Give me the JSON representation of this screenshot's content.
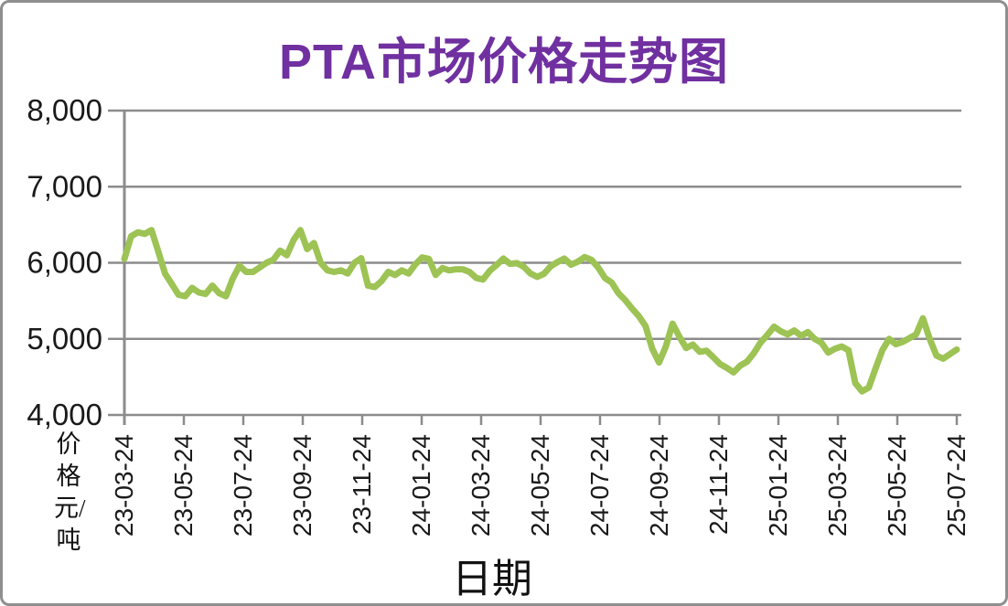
{
  "chart_data": {
    "type": "line",
    "title": "PTA市场价格走势图",
    "title_color": "#7030A0",
    "xlabel": "日期",
    "ylabel": "价格元/吨",
    "ylim": [
      4000,
      8000
    ],
    "y_tick_labels": [
      "8,000",
      "7,000",
      "6,000",
      "5,000",
      "4,000"
    ],
    "x_tick_labels": [
      "23-03-24",
      "23-05-24",
      "23-07-24",
      "23-09-24",
      "23-11-24",
      "24-01-24",
      "24-03-24",
      "24-05-24",
      "24-07-24",
      "24-09-24",
      "24-11-24",
      "25-01-24",
      "25-03-24",
      "25-05-24",
      "25-07-24"
    ],
    "grid": true,
    "legend": false,
    "line_color": "#9DC355",
    "axis_color": "#8C8C8C",
    "tick_label_color": "#1a1a1a",
    "series": [
      {
        "name": "PTA",
        "values": [
          6050,
          6350,
          6400,
          6380,
          6430,
          6150,
          5860,
          5720,
          5580,
          5560,
          5670,
          5610,
          5590,
          5700,
          5600,
          5560,
          5790,
          5960,
          5880,
          5880,
          5940,
          6000,
          6040,
          6160,
          6100,
          6300,
          6430,
          6180,
          6260,
          6000,
          5900,
          5880,
          5900,
          5860,
          6000,
          6060,
          5700,
          5680,
          5760,
          5880,
          5840,
          5900,
          5860,
          5980,
          6070,
          6050,
          5840,
          5930,
          5900,
          5915,
          5915,
          5880,
          5800,
          5780,
          5895,
          5970,
          6055,
          5985,
          5995,
          5950,
          5860,
          5815,
          5855,
          5955,
          6010,
          6055,
          5975,
          6015,
          6075,
          6040,
          5940,
          5800,
          5740,
          5600,
          5510,
          5400,
          5300,
          5170,
          4870,
          4690,
          4900,
          5200,
          5030,
          4880,
          4925,
          4830,
          4845,
          4760,
          4670,
          4620,
          4560,
          4650,
          4700,
          4810,
          4950,
          5050,
          5160,
          5100,
          5060,
          5110,
          5040,
          5090,
          5000,
          4950,
          4820,
          4870,
          4900,
          4850,
          4420,
          4310,
          4360,
          4610,
          4850,
          5000,
          4930,
          4960,
          5010,
          5060,
          5270,
          5000,
          4780,
          4740,
          4800,
          4860
        ]
      }
    ]
  }
}
